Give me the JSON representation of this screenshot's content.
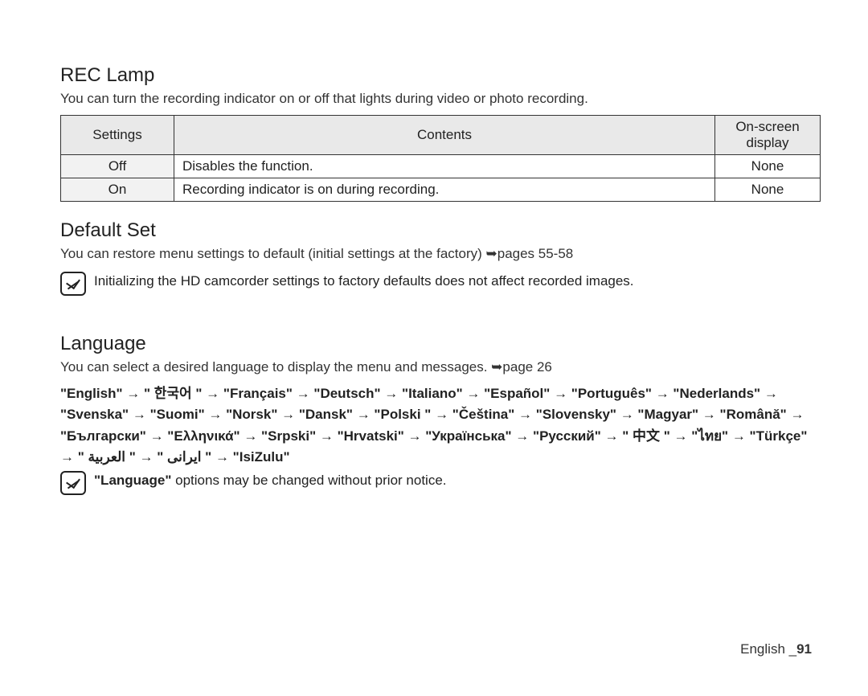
{
  "recLamp": {
    "title": "REC Lamp",
    "desc": "You can turn the recording indicator on or off that lights during video or photo recording.",
    "table": {
      "headers": {
        "settings": "Settings",
        "contents": "Contents",
        "display": "On-screen display"
      },
      "rows": [
        {
          "setting": "Off",
          "content": "Disables the function.",
          "display": "None"
        },
        {
          "setting": "On",
          "content": "Recording indicator is on during recording.",
          "display": "None"
        }
      ]
    }
  },
  "defaultSet": {
    "title": "Default Set",
    "desc": "You can restore menu settings to default (initial settings at the factory) ➥pages 55-58",
    "note": "Initializing the HD camcorder settings to factory defaults does not affect recorded images."
  },
  "language": {
    "title": "Language",
    "desc": "You can select a desired language to display the menu and messages. ➥page 26",
    "list": "\"English\" → \" 한국어 \" → \"Français\" → \"Deutsch\" → \"Italiano\" → \"Español\" → \"Português\" → \"Nederlands\" → \"Svenska\" → \"Suomi\" → \"Norsk\" → \"Dansk\" → \"Polski \" → \"Čeština\" → \"Slovensky\" → \"Magyar\" → \"Română\" → \"Български\" → \"Ελληνικά\" → \"Srpski\" → \"Hrvatski\" → \"Українська\" → \"Русский\" → \" 中文 \" → \"ไทย\" → \"Türkçe\" → \" ایرانی \" → \" العربية \" → \"IsiZulu\"",
    "noteBold": "\"Language\"",
    "noteRest": " options may be changed without prior notice."
  },
  "footer": {
    "lang": "English _",
    "page": "91"
  },
  "style": {
    "bg": "#ffffff",
    "text": "#222222",
    "tableHeaderBg": "#e9e9e9",
    "tableCellShade": "#f2f2f2",
    "border": "#333333",
    "titleFontSize": 24,
    "bodyFontSize": 17
  }
}
